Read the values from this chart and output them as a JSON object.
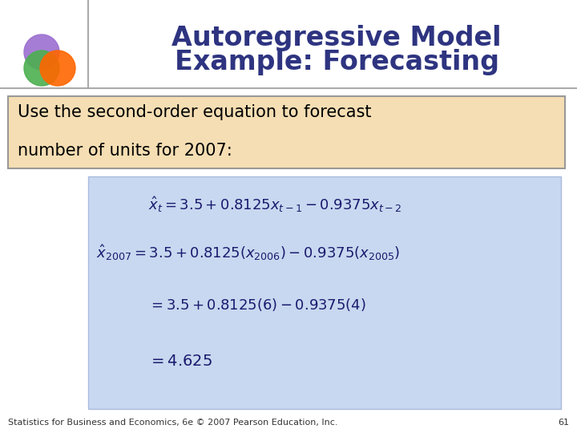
{
  "title_line1": "Autoregressive Model",
  "title_line2": "Example: Forecasting",
  "title_color": "#2E3480",
  "title_fontsize": 24,
  "bg_color": "#FFFFFF",
  "text_box1_line1": "Use the second-order equation to forecast",
  "text_box1_line2": "number of units for 2007:",
  "text_box1_bg": "#F5DEB3",
  "text_box1_edge": "#999999",
  "text_box2_bg": "#C8D8F0",
  "text_box2_edge": "#AABBDD",
  "footer_text": "Statistics for Business and Economics, 6e © 2007 Pearson Education, Inc.",
  "footer_page": "61",
  "footer_fontsize": 8,
  "eq_fontsize": 13,
  "eq_color": "#1a1a6e",
  "circle_purple": "#9B6FD0",
  "circle_green": "#4CAF50",
  "circle_orange": "#FF6600"
}
